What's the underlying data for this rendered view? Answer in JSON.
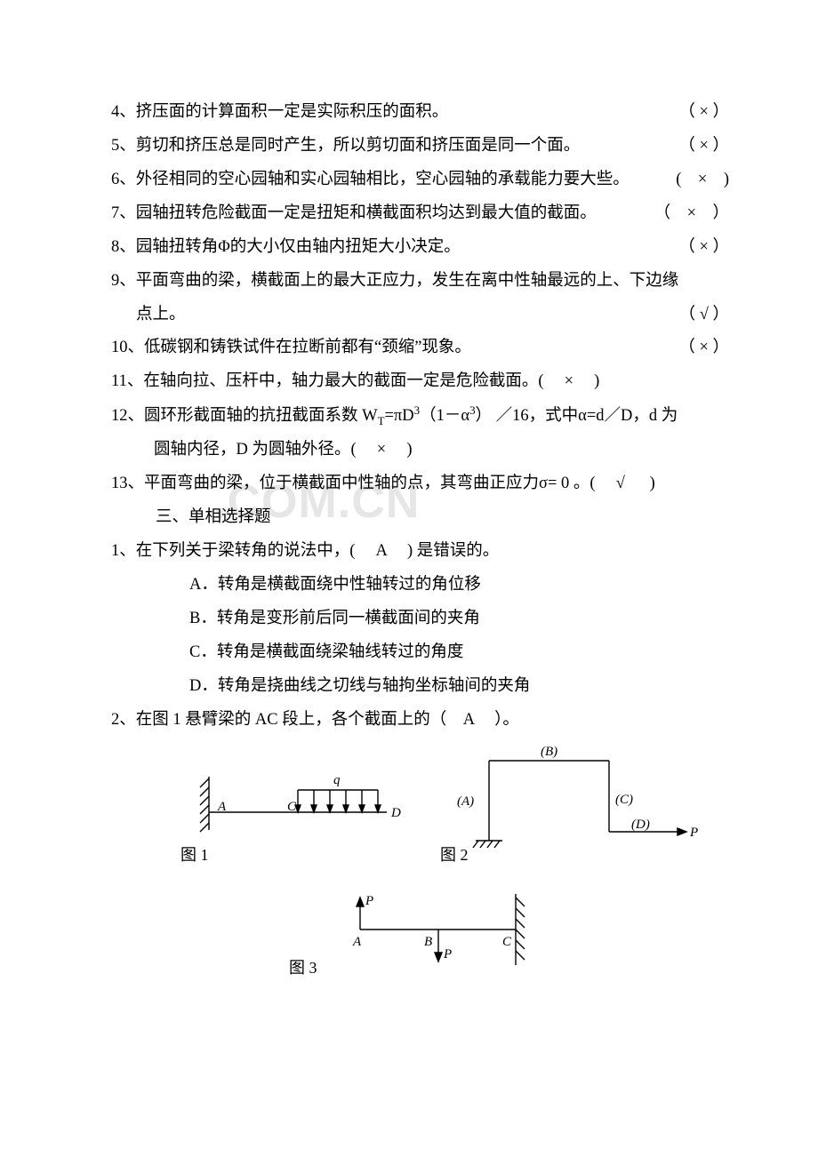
{
  "watermark": ".COM.CN",
  "lines": [
    {
      "type": "tf",
      "text": "4、挤压面的计算面积一定是实际积压的面积。",
      "mark": "（ × ）"
    },
    {
      "type": "tf",
      "text": "5、剪切和挤压总是同时产生，所以剪切面和挤压面是同一个面。",
      "mark": "（ × ）"
    },
    {
      "type": "tf",
      "text": "6、外径相同的空心园轴和实心园轴相比，空心园轴的承载能力要大些。",
      "mark": "(　×　)"
    },
    {
      "type": "tf",
      "text": "7、园轴扭转危险截面一定是扭矩和横截面积均达到最大值的截面。",
      "mark": "（　×　）"
    },
    {
      "type": "tf",
      "text": "8、园轴扭转角Φ的大小仅由轴内扭矩大小决定。",
      "mark": "（ × ）"
    },
    {
      "type": "plain",
      "text": "9、平面弯曲的梁，横截面上的最大正应力，发生在离中性轴最远的上、下边缘"
    },
    {
      "type": "tf-indent",
      "text": "点上。",
      "mark": "（ √ ）"
    },
    {
      "type": "tf",
      "text": "10、低碳钢和铸铁试件在拉断前都有“颈缩”现象。",
      "mark": "（ × ）"
    },
    {
      "type": "plain",
      "text": "11、在轴向拉、压杆中，轴力最大的截面一定是危险截面。(　 × 　)"
    },
    {
      "type": "html",
      "html": "12、圆环形截面轴的抗扭截面系数 W<sub>T</sub>=πD<sup>3</sup>（1－α<sup>3</sup>） ／16，式中α=d／D，d 为"
    },
    {
      "type": "plain-indent2",
      "text": "圆轴内径，D 为圆轴外径。(　 × 　)"
    },
    {
      "type": "plain",
      "text": "13、平面弯曲的梁，位于横截面中性轴的点，其弯曲正应力σ= 0 。(　 √ 　 )"
    },
    {
      "type": "heading",
      "text": "三、单相选择题"
    },
    {
      "type": "plain",
      "text": "1、在下列关于梁转角的说法中，(　 A　 ) 是错误的。"
    },
    {
      "type": "opt",
      "text": "A．转角是横截面绕中性轴转过的角位移"
    },
    {
      "type": "opt",
      "text": "B．转角是变形前后同一横截面间的夹角"
    },
    {
      "type": "opt",
      "text": "C．转角是横截面绕梁轴线转过的角度"
    },
    {
      "type": "opt",
      "text": "D．转角是挠曲线之切线与轴拘坐标轴间的夹角"
    },
    {
      "type": "plain",
      "text": "2、在图 1 悬臂梁的 AC 段上，各个截面上的（　A　 ）。"
    }
  ],
  "figures": {
    "fig1_label": "图 1",
    "fig2_label": "图 2",
    "fig3_label": "图 3",
    "labels": {
      "A1": "A",
      "C1": "C",
      "D1": "D",
      "q": "q",
      "A2": "(A)",
      "B2": "(B)",
      "C2": "(C)",
      "D2": "(D)",
      "P2": "P",
      "A3": "A",
      "B3": "B",
      "C3": "C",
      "P3a": "P",
      "P3b": "P"
    },
    "stroke": "#000000",
    "stroke_width": 1.4,
    "font_italic": "italic 15px 'Times New Roman', serif",
    "font_reg": "15px 'Times New Roman', serif"
  }
}
